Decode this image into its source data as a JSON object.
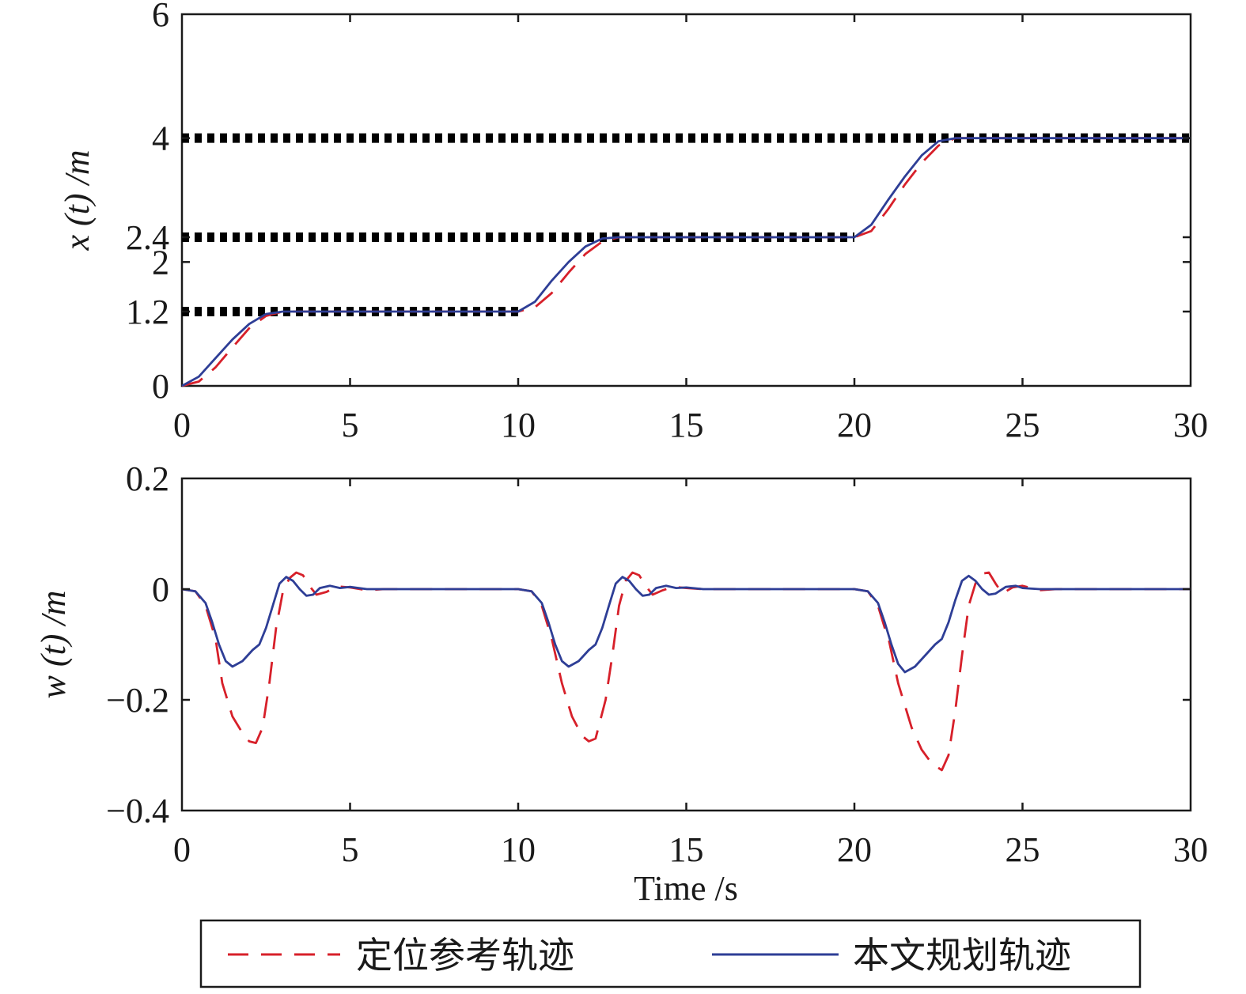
{
  "legend": {
    "reference_label": "定位参考轨迹",
    "planned_label": "本文规划轨迹"
  },
  "colors": {
    "reference": "#d7202a",
    "planned": "#2e3e96",
    "target": "#000000",
    "axis": "#1a1a1a"
  },
  "chart_data": [
    {
      "type": "line",
      "xlabel": "",
      "ylabel": "x (t) /m",
      "xlim": [
        0,
        30
      ],
      "ylim": [
        0,
        6
      ],
      "xticks": [
        "0",
        "5",
        "10",
        "15",
        "20",
        "25",
        "30"
      ],
      "yticks": [
        {
          "value": 0,
          "label": "0"
        },
        {
          "value": 1.2,
          "label": "1.2"
        },
        {
          "value": 2,
          "label": "2"
        },
        {
          "value": 2.4,
          "label": "2.4"
        },
        {
          "value": 4,
          "label": "4"
        },
        {
          "value": 6,
          "label": "6"
        }
      ],
      "grid": false,
      "target_levels": [
        {
          "value": 1.2,
          "x_range": [
            0,
            10
          ]
        },
        {
          "value": 2.4,
          "x_range": [
            0,
            20
          ]
        },
        {
          "value": 4.0,
          "x_range": [
            0,
            30
          ]
        }
      ],
      "series": [
        {
          "name": "定位参考轨迹",
          "style": "dashed",
          "x": [
            0,
            0.5,
            1.0,
            1.5,
            2.0,
            2.5,
            3.0,
            10.0,
            10.5,
            11.0,
            11.5,
            12.0,
            12.5,
            13.0,
            20.0,
            20.5,
            21.0,
            21.5,
            22.0,
            22.5,
            23.0,
            23.5,
            30.0
          ],
          "y": [
            0,
            0.07,
            0.3,
            0.62,
            0.93,
            1.13,
            1.2,
            1.2,
            1.27,
            1.5,
            1.83,
            2.13,
            2.33,
            2.4,
            2.4,
            2.5,
            2.85,
            3.25,
            3.6,
            3.88,
            4.0,
            4.0,
            4.0
          ]
        },
        {
          "name": "本文规划轨迹",
          "style": "solid",
          "x": [
            0,
            0.5,
            1.0,
            1.5,
            2.0,
            2.5,
            3.0,
            10.0,
            10.5,
            11.0,
            11.5,
            12.0,
            12.5,
            13.0,
            20.0,
            20.5,
            21.0,
            21.5,
            22.0,
            22.5,
            23.0,
            23.5,
            30.0
          ],
          "y": [
            0,
            0.15,
            0.45,
            0.75,
            1.0,
            1.16,
            1.2,
            1.2,
            1.36,
            1.7,
            2.0,
            2.25,
            2.38,
            2.4,
            2.4,
            2.6,
            3.0,
            3.38,
            3.72,
            3.95,
            4.0,
            4.0,
            4.0
          ]
        }
      ]
    },
    {
      "type": "line",
      "xlabel": "Time /s",
      "ylabel": "w (t) /m",
      "xlim": [
        0,
        30
      ],
      "ylim": [
        -0.4,
        0.2
      ],
      "xticks": [
        "0",
        "5",
        "10",
        "15",
        "20",
        "25",
        "30"
      ],
      "yticks": [
        {
          "value": -0.4,
          "label": "−0.4"
        },
        {
          "value": -0.2,
          "label": "−0.2"
        },
        {
          "value": 0,
          "label": "0"
        },
        {
          "value": 0.2,
          "label": "0.2"
        }
      ],
      "grid": false,
      "series": [
        {
          "name": "定位参考轨迹",
          "style": "dashed",
          "x": [
            0,
            0.4,
            0.7,
            0.9,
            1.0,
            1.2,
            1.5,
            1.8,
            2.0,
            2.2,
            2.4,
            2.6,
            2.8,
            3.0,
            3.2,
            3.4,
            3.6,
            3.8,
            4.0,
            4.3,
            4.6,
            5.0,
            5.5,
            6.0,
            10.0,
            10.4,
            10.7,
            10.9,
            11.0,
            11.3,
            11.6,
            11.9,
            12.1,
            12.3,
            12.6,
            12.8,
            13.0,
            13.2,
            13.4,
            13.6,
            13.8,
            14.0,
            14.3,
            14.6,
            15.0,
            15.5,
            16.0,
            20.0,
            20.4,
            20.7,
            20.9,
            21.0,
            21.3,
            21.7,
            22.0,
            22.3,
            22.6,
            22.8,
            23.0,
            23.2,
            23.4,
            23.6,
            23.8,
            24.0,
            24.2,
            24.4,
            24.7,
            25.0,
            25.5,
            26.0,
            30.0
          ],
          "y": [
            0,
            -0.004,
            -0.03,
            -0.07,
            -0.09,
            -0.17,
            -0.23,
            -0.26,
            -0.275,
            -0.278,
            -0.25,
            -0.17,
            -0.07,
            -0.005,
            0.02,
            0.03,
            0.025,
            0.005,
            -0.01,
            -0.005,
            0.005,
            0.003,
            -0.002,
            0,
            0,
            -0.004,
            -0.03,
            -0.07,
            -0.09,
            -0.17,
            -0.23,
            -0.265,
            -0.275,
            -0.27,
            -0.2,
            -0.12,
            -0.03,
            0.015,
            0.03,
            0.025,
            0.005,
            -0.01,
            -0.002,
            0.004,
            0.002,
            0,
            0,
            0,
            -0.004,
            -0.03,
            -0.07,
            -0.085,
            -0.17,
            -0.25,
            -0.29,
            -0.315,
            -0.327,
            -0.3,
            -0.22,
            -0.12,
            -0.03,
            0.01,
            0.028,
            0.03,
            0.01,
            -0.008,
            0.003,
            0.006,
            -0.002,
            0,
            0
          ]
        },
        {
          "name": "本文规划轨迹",
          "style": "solid",
          "x": [
            0,
            0.4,
            0.7,
            0.9,
            1.1,
            1.3,
            1.5,
            1.8,
            2.1,
            2.3,
            2.5,
            2.7,
            2.9,
            3.1,
            3.3,
            3.5,
            3.7,
            3.9,
            4.1,
            4.4,
            4.7,
            5.0,
            5.5,
            6.0,
            10.0,
            10.4,
            10.7,
            10.9,
            11.1,
            11.3,
            11.5,
            11.8,
            12.1,
            12.3,
            12.5,
            12.7,
            12.9,
            13.1,
            13.3,
            13.5,
            13.7,
            13.9,
            14.1,
            14.4,
            14.7,
            15.0,
            15.5,
            16.0,
            20.0,
            20.4,
            20.7,
            20.9,
            21.1,
            21.3,
            21.5,
            21.8,
            22.1,
            22.4,
            22.6,
            22.8,
            23.0,
            23.2,
            23.4,
            23.6,
            23.8,
            24.0,
            24.2,
            24.5,
            24.8,
            25.0,
            25.5,
            26.0,
            30.0
          ],
          "y": [
            0,
            -0.004,
            -0.025,
            -0.06,
            -0.1,
            -0.13,
            -0.14,
            -0.13,
            -0.11,
            -0.1,
            -0.07,
            -0.03,
            0.01,
            0.022,
            0.015,
            0.0,
            -0.012,
            -0.01,
            0.002,
            0.006,
            0.002,
            0.004,
            0,
            0,
            0,
            -0.004,
            -0.025,
            -0.06,
            -0.1,
            -0.13,
            -0.14,
            -0.13,
            -0.11,
            -0.1,
            -0.07,
            -0.03,
            0.01,
            0.022,
            0.015,
            0.0,
            -0.012,
            -0.01,
            0.002,
            0.006,
            0.002,
            0.003,
            0,
            0,
            0,
            -0.004,
            -0.025,
            -0.06,
            -0.1,
            -0.135,
            -0.15,
            -0.14,
            -0.12,
            -0.1,
            -0.09,
            -0.06,
            -0.02,
            0.015,
            0.024,
            0.015,
            0.0,
            -0.01,
            -0.008,
            0.004,
            0.006,
            0.002,
            0,
            0,
            0
          ]
        }
      ]
    }
  ]
}
